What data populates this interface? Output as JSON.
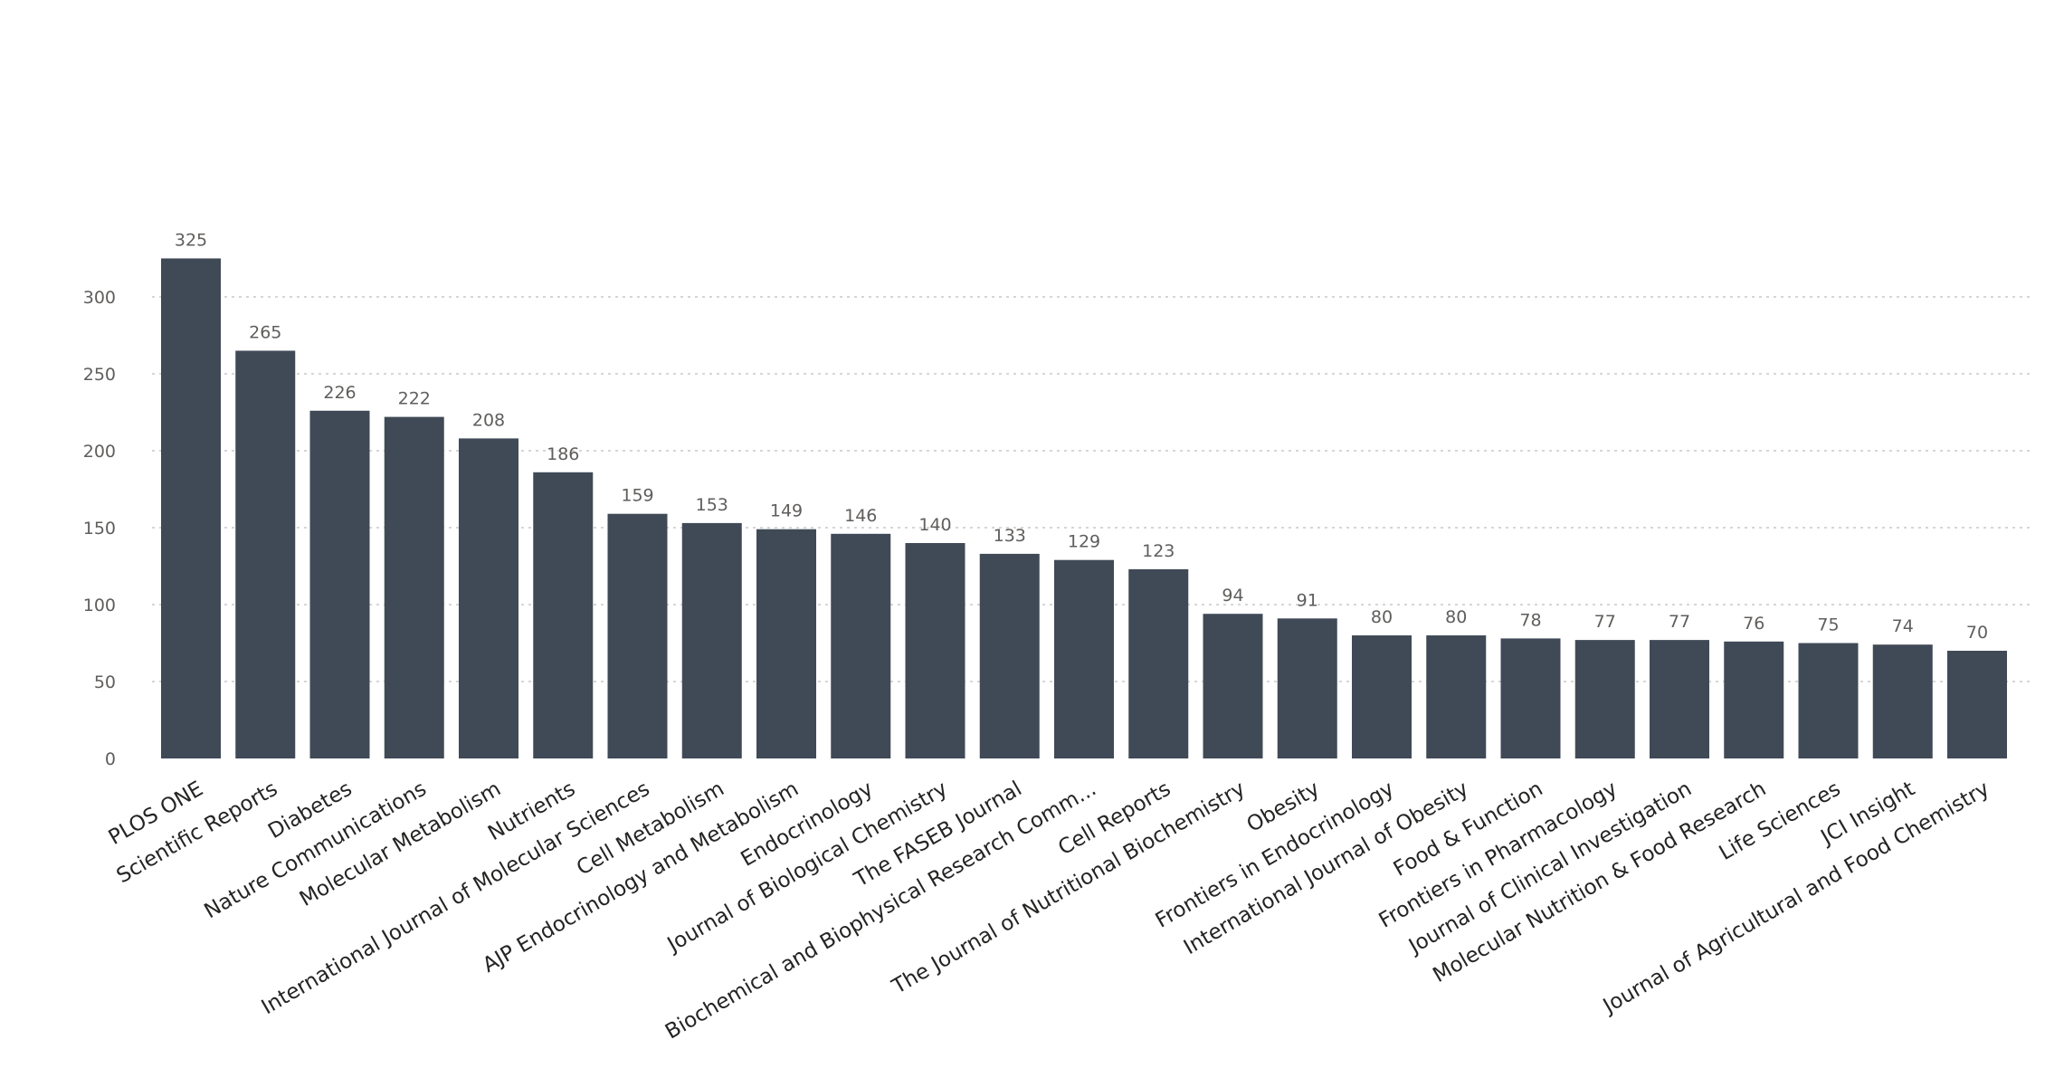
{
  "chart_data": {
    "type": "bar",
    "title": "",
    "xlabel": "",
    "ylabel": "",
    "ylim": [
      0,
      340
    ],
    "yticks": [
      0,
      50,
      100,
      150,
      200,
      250,
      300
    ],
    "grid": true,
    "bar_color": "#404a57",
    "categories": [
      "PLOS ONE",
      "Scientific Reports",
      "Diabetes",
      "Nature Communications",
      "Molecular Metabolism",
      "Nutrients",
      "International Journal of Molecular Sciences",
      "Cell Metabolism",
      "AJP Endocrinology and Metabolism",
      "Endocrinology",
      "Journal of Biological Chemistry",
      "The FASEB Journal",
      "Biochemical and Biophysical Research Comm...",
      "Cell Reports",
      "The Journal of Nutritional Biochemistry",
      "Obesity",
      "Frontiers in Endocrinology",
      "International Journal of Obesity",
      "Food & Function",
      "Frontiers in Pharmacology",
      "Journal of Clinical Investigation",
      "Molecular Nutrition & Food Research",
      "Life Sciences",
      "JCI Insight",
      "Journal of Agricultural and Food Chemistry"
    ],
    "values": [
      325,
      265,
      226,
      222,
      208,
      186,
      159,
      153,
      149,
      146,
      140,
      133,
      129,
      123,
      94,
      91,
      80,
      80,
      78,
      77,
      77,
      76,
      75,
      74,
      70
    ]
  }
}
